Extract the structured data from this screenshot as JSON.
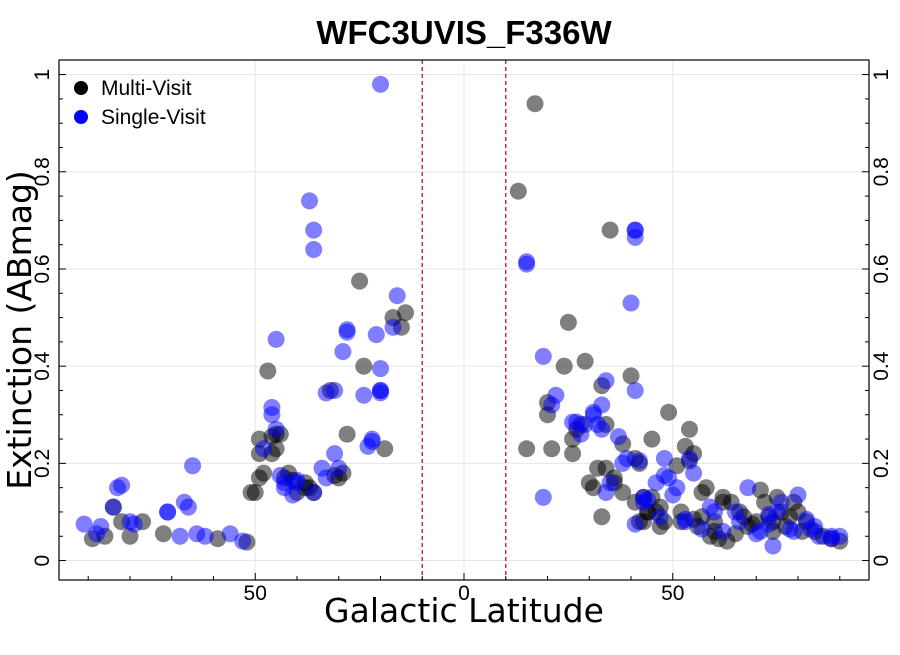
{
  "chart_data": {
    "type": "scatter",
    "title": "WFC3UVIS_F336W",
    "xlabel": "Galactic Latitude",
    "ylabel": "Extinction (ABmag)",
    "xlim": [
      -97,
      97
    ],
    "ylim": [
      -0.04,
      1.03
    ],
    "x_ticks": [
      {
        "value": -50,
        "label": "50"
      },
      {
        "value": 0,
        "label": "0"
      },
      {
        "value": 50,
        "label": "50"
      }
    ],
    "y_ticks": [
      {
        "value": 0,
        "label": "0"
      },
      {
        "value": 0.2,
        "label": "0.2"
      },
      {
        "value": 0.4,
        "label": "0.4"
      },
      {
        "value": 0.6,
        "label": "0.6"
      },
      {
        "value": 0.8,
        "label": "0.8"
      },
      {
        "value": 1,
        "label": "1"
      }
    ],
    "vlines": [
      -10,
      10
    ],
    "vline_color": "#cc0000",
    "grid": true,
    "legend_position": "top-left",
    "series": [
      {
        "name": "Multi-Visit",
        "color": "#000000",
        "points": [
          [
            -89,
            0.045
          ],
          [
            -86,
            0.05
          ],
          [
            -84,
            0.11
          ],
          [
            -82,
            0.08
          ],
          [
            -80,
            0.05
          ],
          [
            -77,
            0.08
          ],
          [
            -72,
            0.055
          ],
          [
            -59,
            0.045
          ],
          [
            -52,
            0.038
          ],
          [
            -51,
            0.14
          ],
          [
            -50,
            0.14
          ],
          [
            -49,
            0.17
          ],
          [
            -49,
            0.22
          ],
          [
            -49,
            0.25
          ],
          [
            -48,
            0.18
          ],
          [
            -47,
            0.39
          ],
          [
            -46,
            0.22
          ],
          [
            -45,
            0.23
          ],
          [
            -46,
            0.255
          ],
          [
            -45,
            0.26
          ],
          [
            -44,
            0.26
          ],
          [
            -43,
            0.17
          ],
          [
            -42,
            0.18
          ],
          [
            -41,
            0.165
          ],
          [
            -40,
            0.14
          ],
          [
            -38,
            0.16
          ],
          [
            -38,
            0.15
          ],
          [
            -37,
            0.15
          ],
          [
            -36,
            0.14
          ],
          [
            -32,
            0.35
          ],
          [
            -31,
            0.175
          ],
          [
            -30,
            0.17
          ],
          [
            -29,
            0.18
          ],
          [
            -28,
            0.26
          ],
          [
            -25,
            0.575
          ],
          [
            -24,
            0.4
          ],
          [
            -19,
            0.23
          ],
          [
            -17,
            0.5
          ],
          [
            -15,
            0.48
          ],
          [
            -14,
            0.51
          ],
          [
            13,
            0.76
          ],
          [
            17,
            0.94
          ],
          [
            15,
            0.23
          ],
          [
            20,
            0.3
          ],
          [
            20,
            0.325
          ],
          [
            21,
            0.23
          ],
          [
            24,
            0.4
          ],
          [
            25,
            0.49
          ],
          [
            26,
            0.22
          ],
          [
            26,
            0.25
          ],
          [
            27,
            0.27
          ],
          [
            28,
            0.28
          ],
          [
            29,
            0.41
          ],
          [
            30,
            0.16
          ],
          [
            31,
            0.15
          ],
          [
            32,
            0.19
          ],
          [
            33,
            0.36
          ],
          [
            33,
            0.09
          ],
          [
            34,
            0.28
          ],
          [
            34,
            0.19
          ],
          [
            35,
            0.68
          ],
          [
            36,
            0.17
          ],
          [
            36,
            0.16
          ],
          [
            38,
            0.24
          ],
          [
            38,
            0.14
          ],
          [
            40,
            0.38
          ],
          [
            41,
            0.12
          ],
          [
            41,
            0.21
          ],
          [
            42,
            0.08
          ],
          [
            42,
            0.2
          ],
          [
            43,
            0.13
          ],
          [
            43,
            0.08
          ],
          [
            44,
            0.1
          ],
          [
            44,
            0.1
          ],
          [
            45,
            0.25
          ],
          [
            45,
            0.13
          ],
          [
            46,
            0.1
          ],
          [
            47,
            0.07
          ],
          [
            47,
            0.11
          ],
          [
            48,
            0.08
          ],
          [
            49,
            0.305
          ],
          [
            51,
            0.195
          ],
          [
            52,
            0.1
          ],
          [
            52,
            0.08
          ],
          [
            53,
            0.235
          ],
          [
            54,
            0.205
          ],
          [
            54,
            0.27
          ],
          [
            55,
            0.22
          ],
          [
            55,
            0.085
          ],
          [
            56,
            0.07
          ],
          [
            57,
            0.14
          ],
          [
            57,
            0.09
          ],
          [
            58,
            0.15
          ],
          [
            59,
            0.05
          ],
          [
            60,
            0.08
          ],
          [
            60,
            0.06
          ],
          [
            61,
            0.045
          ],
          [
            62,
            0.13
          ],
          [
            62,
            0.12
          ],
          [
            63,
            0.04
          ],
          [
            64,
            0.12
          ],
          [
            65,
            0.055
          ],
          [
            66,
            0.1
          ],
          [
            67,
            0.09
          ],
          [
            68,
            0.07
          ],
          [
            69,
            0.075
          ],
          [
            70,
            0.08
          ],
          [
            71,
            0.145
          ],
          [
            72,
            0.12
          ],
          [
            73,
            0.09
          ],
          [
            74,
            0.08
          ],
          [
            74,
            0.06
          ],
          [
            75,
            0.13
          ],
          [
            76,
            0.1
          ],
          [
            77,
            0.07
          ],
          [
            78,
            0.09
          ],
          [
            79,
            0.12
          ],
          [
            80,
            0.1
          ],
          [
            81,
            0.06
          ],
          [
            82,
            0.08
          ],
          [
            84,
            0.06
          ],
          [
            86,
            0.05
          ],
          [
            88,
            0.045
          ],
          [
            90,
            0.04
          ]
        ]
      },
      {
        "name": "Single-Visit",
        "color": "#0000ff",
        "points": [
          [
            -91,
            0.075
          ],
          [
            -88,
            0.055
          ],
          [
            -87,
            0.07
          ],
          [
            -84,
            0.11
          ],
          [
            -83,
            0.15
          ],
          [
            -82,
            0.155
          ],
          [
            -80,
            0.08
          ],
          [
            -79,
            0.075
          ],
          [
            -71,
            0.1
          ],
          [
            -71,
            0.1
          ],
          [
            -68,
            0.05
          ],
          [
            -67,
            0.12
          ],
          [
            -66,
            0.11
          ],
          [
            -65,
            0.195
          ],
          [
            -64,
            0.055
          ],
          [
            -62,
            0.05
          ],
          [
            -56,
            0.055
          ],
          [
            -53,
            0.04
          ],
          [
            -48,
            0.23
          ],
          [
            -46,
            0.3
          ],
          [
            -46,
            0.315
          ],
          [
            -45,
            0.455
          ],
          [
            -45,
            0.27
          ],
          [
            -44,
            0.175
          ],
          [
            -43,
            0.16
          ],
          [
            -43,
            0.15
          ],
          [
            -41,
            0.135
          ],
          [
            -40,
            0.165
          ],
          [
            -40,
            0.16
          ],
          [
            -37,
            0.74
          ],
          [
            -36,
            0.68
          ],
          [
            -36,
            0.64
          ],
          [
            -36,
            0.14
          ],
          [
            -34,
            0.19
          ],
          [
            -33,
            0.345
          ],
          [
            -33,
            0.17
          ],
          [
            -31,
            0.35
          ],
          [
            -31,
            0.22
          ],
          [
            -30,
            0.19
          ],
          [
            -29,
            0.43
          ],
          [
            -28,
            0.475
          ],
          [
            -28,
            0.47
          ],
          [
            -24,
            0.34
          ],
          [
            -23,
            0.235
          ],
          [
            -22,
            0.245
          ],
          [
            -22,
            0.25
          ],
          [
            -21,
            0.465
          ],
          [
            -20,
            0.395
          ],
          [
            -20,
            0.35
          ],
          [
            -20,
            0.35
          ],
          [
            -20,
            0.345
          ],
          [
            -20,
            0.98
          ],
          [
            -17,
            0.48
          ],
          [
            -16,
            0.545
          ],
          [
            15,
            0.615
          ],
          [
            15,
            0.61
          ],
          [
            19,
            0.42
          ],
          [
            19,
            0.13
          ],
          [
            21,
            0.32
          ],
          [
            22,
            0.34
          ],
          [
            26,
            0.285
          ],
          [
            27,
            0.285
          ],
          [
            28,
            0.26
          ],
          [
            29,
            0.28
          ],
          [
            31,
            0.3
          ],
          [
            31,
            0.305
          ],
          [
            32,
            0.28
          ],
          [
            33,
            0.27
          ],
          [
            33,
            0.32
          ],
          [
            34,
            0.37
          ],
          [
            34,
            0.14
          ],
          [
            35,
            0.16
          ],
          [
            37,
            0.255
          ],
          [
            38,
            0.2
          ],
          [
            39,
            0.21
          ],
          [
            40,
            0.53
          ],
          [
            41,
            0.68
          ],
          [
            41,
            0.68
          ],
          [
            41,
            0.665
          ],
          [
            41,
            0.35
          ],
          [
            41,
            0.075
          ],
          [
            42,
            0.205
          ],
          [
            43,
            0.13
          ],
          [
            43,
            0.12
          ],
          [
            44,
            0.125
          ],
          [
            46,
            0.16
          ],
          [
            47,
            0.09
          ],
          [
            48,
            0.175
          ],
          [
            48,
            0.21
          ],
          [
            49,
            0.17
          ],
          [
            50,
            0.135
          ],
          [
            51,
            0.15
          ],
          [
            53,
            0.08
          ],
          [
            53,
            0.085
          ],
          [
            54,
            0.21
          ],
          [
            55,
            0.18
          ],
          [
            57,
            0.065
          ],
          [
            59,
            0.11
          ],
          [
            60,
            0.1
          ],
          [
            62,
            0.06
          ],
          [
            65,
            0.1
          ],
          [
            66,
            0.08
          ],
          [
            68,
            0.15
          ],
          [
            70,
            0.055
          ],
          [
            71,
            0.06
          ],
          [
            73,
            0.095
          ],
          [
            73,
            0.075
          ],
          [
            74,
            0.03
          ],
          [
            75,
            0.1
          ],
          [
            76,
            0.12
          ],
          [
            78,
            0.065
          ],
          [
            79,
            0.06
          ],
          [
            80,
            0.135
          ],
          [
            82,
            0.085
          ],
          [
            83,
            0.065
          ],
          [
            84,
            0.07
          ],
          [
            85,
            0.05
          ],
          [
            88,
            0.05
          ],
          [
            88,
            0.045
          ],
          [
            90,
            0.05
          ]
        ]
      }
    ]
  }
}
